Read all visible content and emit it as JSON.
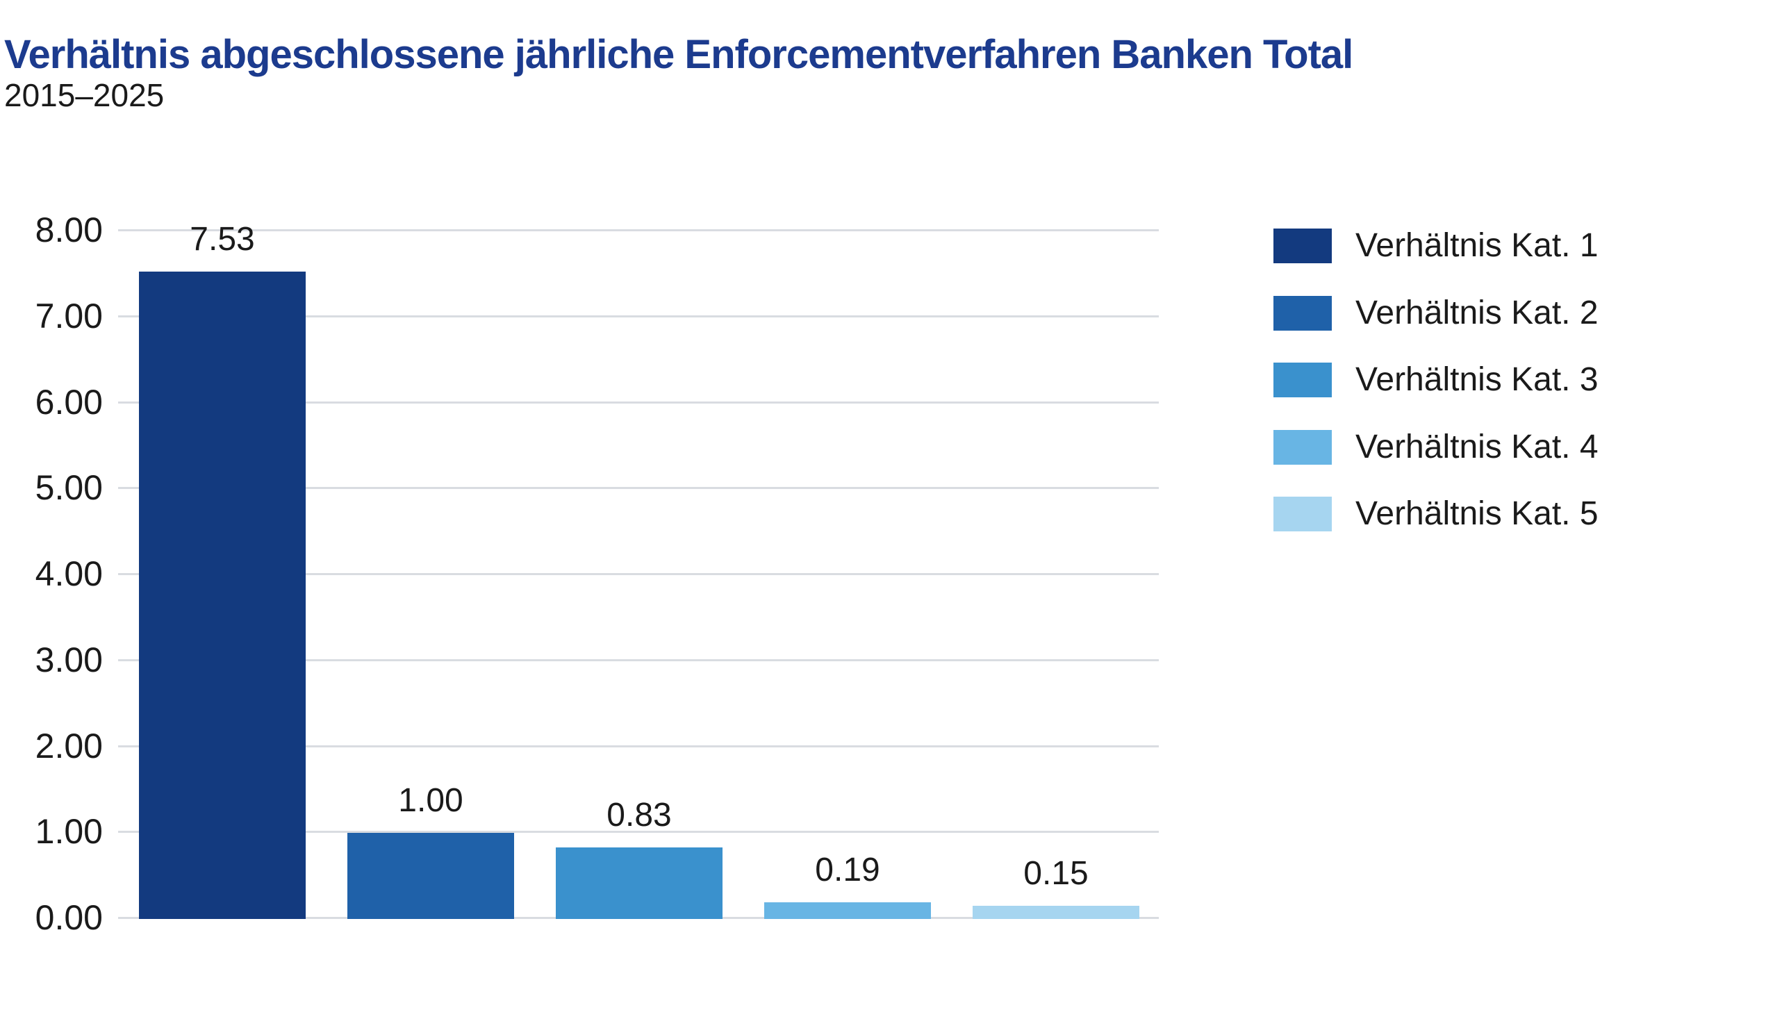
{
  "header": {
    "title": "Verhältnis abgeschlossene jährliche Enforcementverfahren Banken Total",
    "subtitle": "2015–2025"
  },
  "chart_data": {
    "type": "bar",
    "title": "Verhältnis abgeschlossene jährliche Enforcementverfahren Banken Total",
    "subtitle": "2015–2025",
    "categories": [
      "Verhältnis Kat. 1",
      "Verhältnis Kat. 2",
      "Verhältnis Kat. 3",
      "Verhältnis Kat. 4",
      "Verhältnis Kat. 5"
    ],
    "values": [
      7.53,
      1.0,
      0.83,
      0.19,
      0.15
    ],
    "value_labels": [
      "7.53",
      "1.00",
      "0.83",
      "0.19",
      "0.15"
    ],
    "colors": [
      "#133a7f",
      "#1f61a9",
      "#3a91cd",
      "#68b5e4",
      "#a6d5f0"
    ],
    "xlabel": "",
    "ylabel": "",
    "ylim": [
      0,
      8
    ],
    "ytick_step": 1,
    "ytick_labels": [
      "0.00",
      "1.00",
      "2.00",
      "3.00",
      "4.00",
      "5.00",
      "6.00",
      "7.00",
      "8.00"
    ],
    "grid": true,
    "legend_position": "right"
  },
  "colors": {
    "title_blue": "#1c3b8e",
    "text": "#1a1a1a",
    "gridline": "#d9dce1",
    "background": "#ffffff"
  }
}
